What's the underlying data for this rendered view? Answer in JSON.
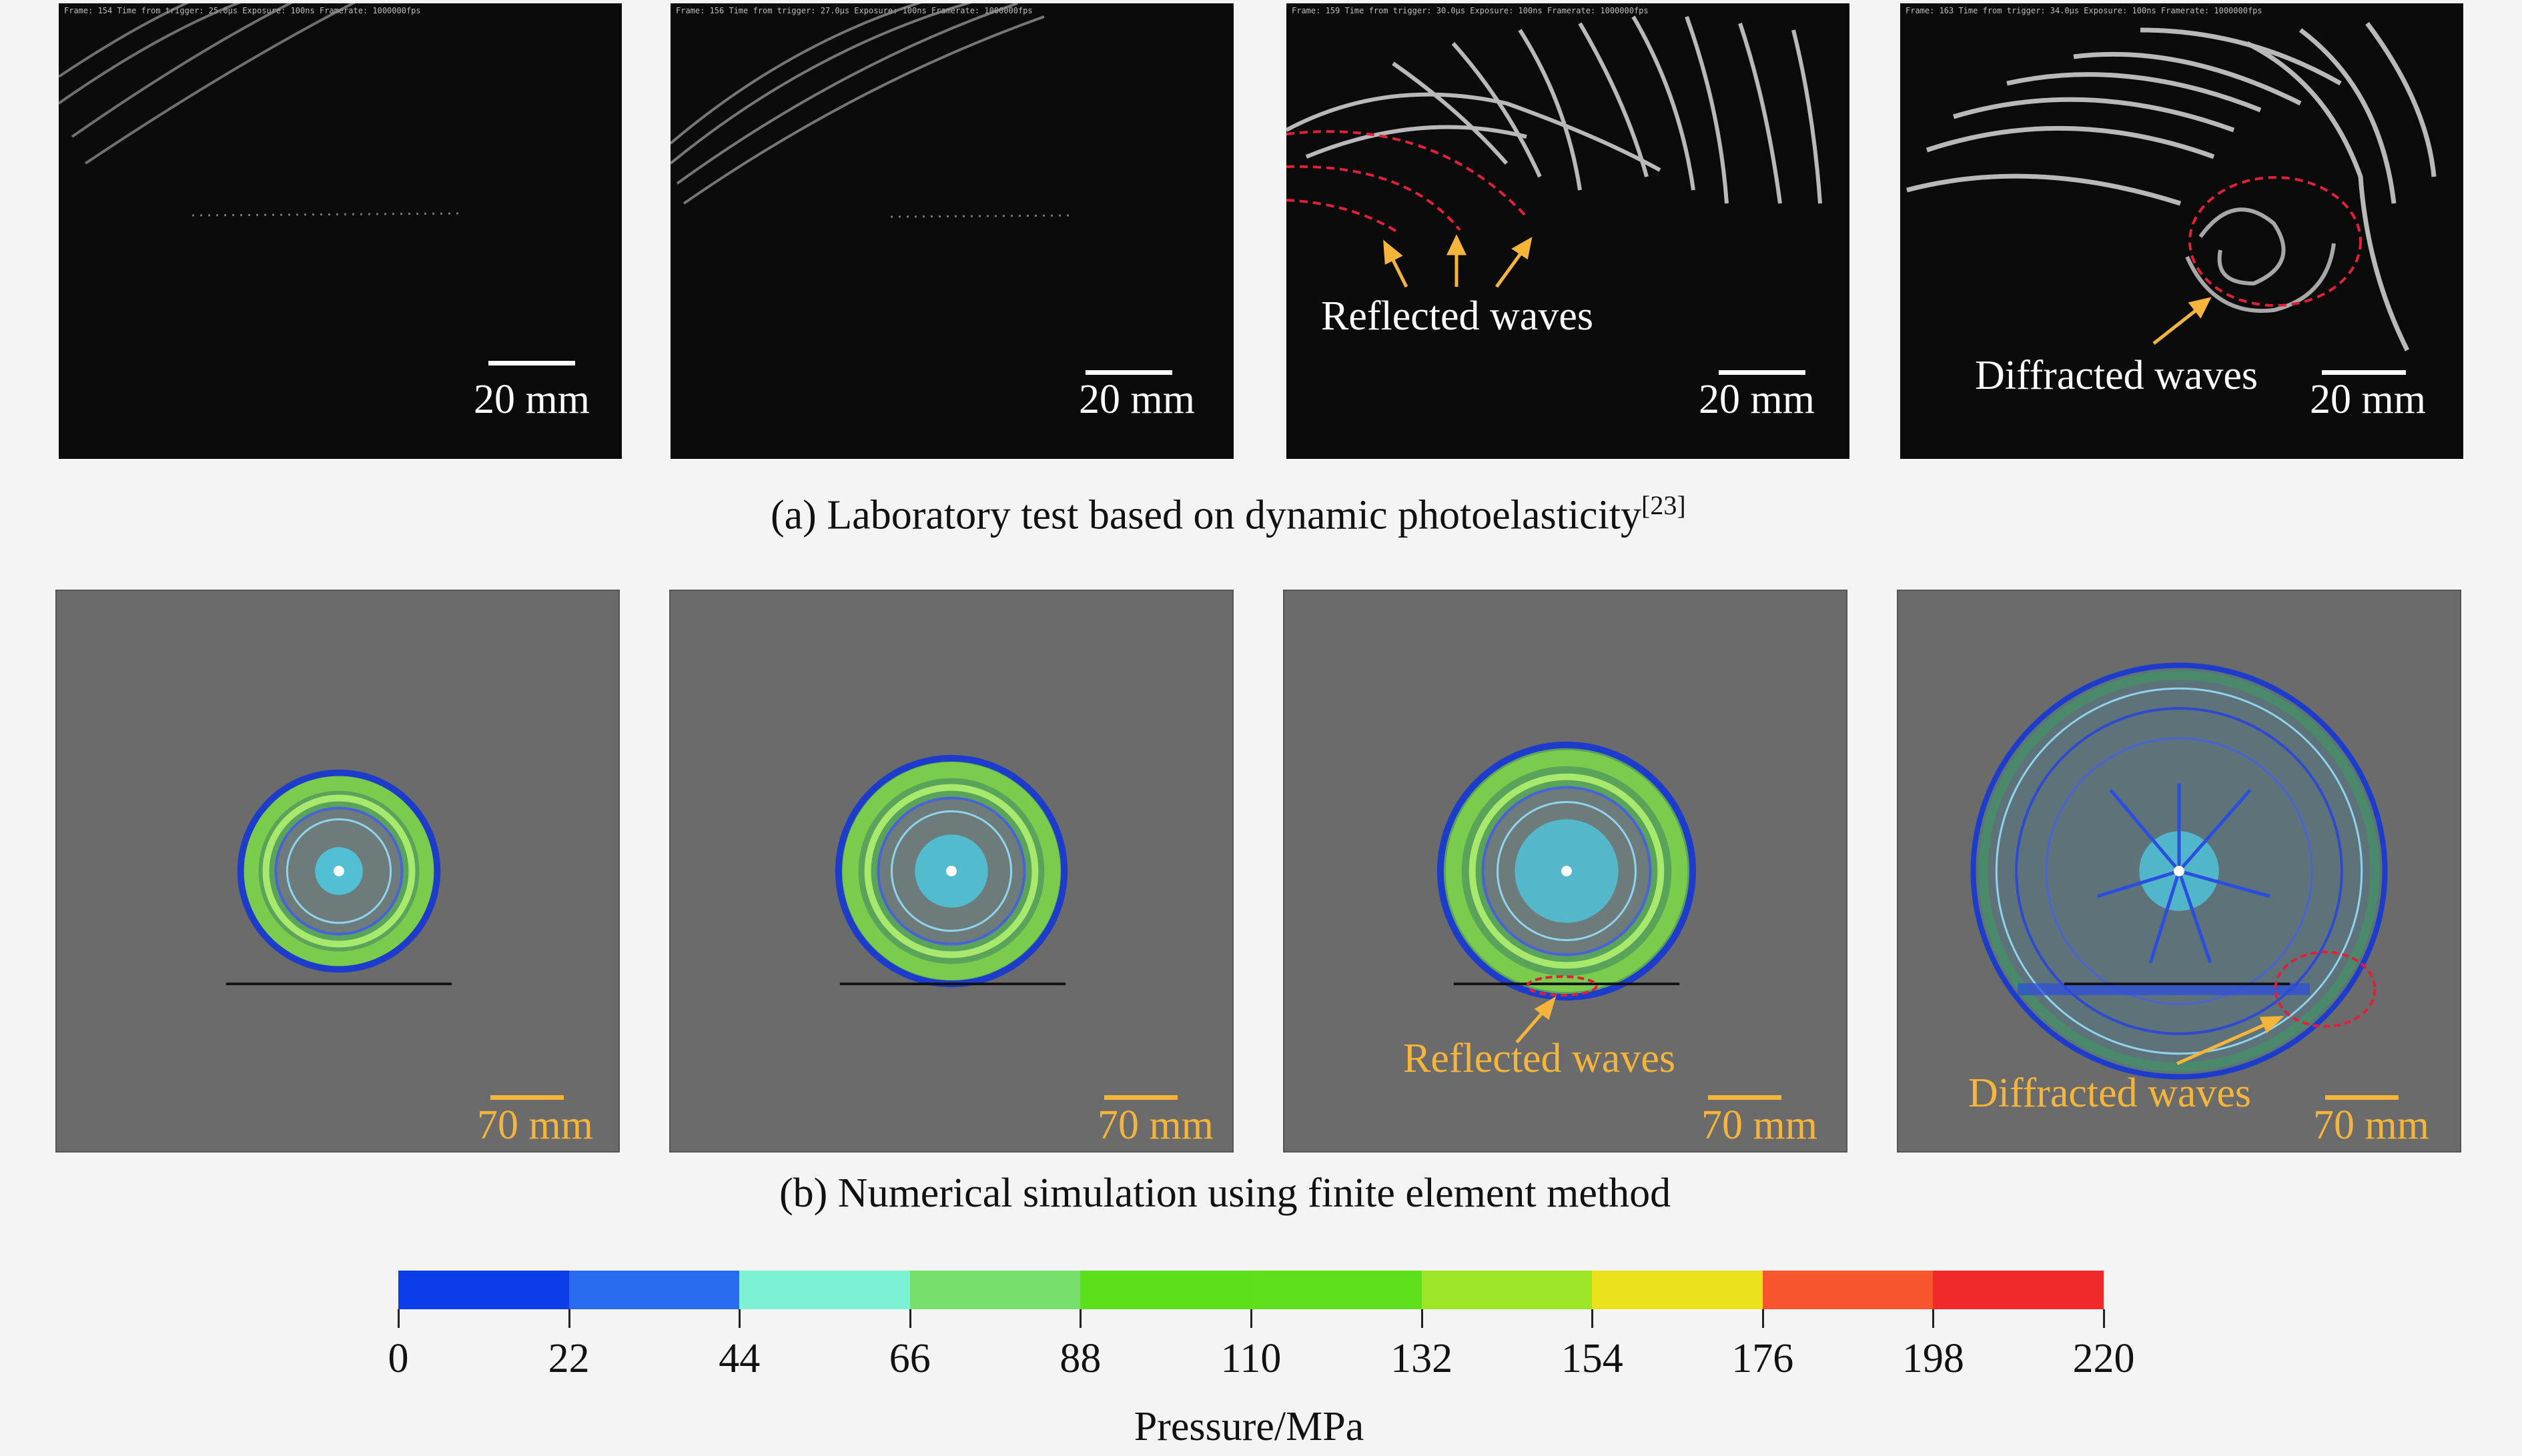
{
  "top_row": {
    "caption_text": "(a) Laboratory test based on dynamic photoelasticity",
    "caption_ref": "[23]",
    "panels": [
      {
        "header": "Frame: 154  Time from trigger: 25.0μs  Exposure: 100ns  Framerate: 1000000fps",
        "scale": "20 mm"
      },
      {
        "header": "Frame: 156  Time from trigger: 27.0μs  Exposure: 100ns  Framerate: 1000000fps",
        "scale": "20 mm"
      },
      {
        "header": "Frame: 159  Time from trigger: 30.0μs  Exposure: 100ns  Framerate: 1000000fps",
        "scale": "20 mm",
        "annotation": "Reflected waves"
      },
      {
        "header": "Frame: 163  Time from trigger: 34.0μs  Exposure: 100ns  Framerate: 1000000fps",
        "scale": "20 mm",
        "annotation": "Diffracted waves"
      }
    ]
  },
  "bottom_row": {
    "caption_text": "(b) Numerical simulation using finite element method",
    "panels": [
      {
        "scale": "70 mm"
      },
      {
        "scale": "70 mm"
      },
      {
        "scale": "70 mm",
        "annotation": "Reflected waves"
      },
      {
        "scale": "70 mm",
        "annotation": "Diffracted waves"
      }
    ]
  },
  "colorbar": {
    "title": "Pressure/MPa",
    "ticks": [
      "0",
      "22",
      "44",
      "66",
      "88",
      "110",
      "132",
      "154",
      "176",
      "198",
      "220"
    ],
    "colors": [
      "#0b3ee8",
      "#2a6cf0",
      "#7df2d2",
      "#77e06a",
      "#5ce01c",
      "#5ee01a",
      "#9ee628",
      "#ebe21c",
      "#f7552e",
      "#f02a2a"
    ]
  },
  "colors": {
    "annotation_red": "#e0203a",
    "arrow_orange": "#f5b53b",
    "sim_background": "#6b6b6b",
    "photo_background": "#0b0b0b"
  }
}
